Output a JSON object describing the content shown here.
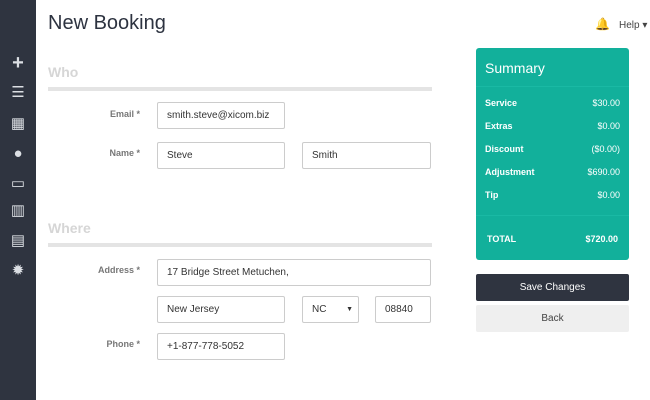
{
  "header": {
    "title": "New Booking",
    "help": "Help ▾"
  },
  "sidebar": {
    "icons": [
      "plus-icon",
      "list-icon",
      "calendar-icon",
      "user-icon",
      "credit-card-icon",
      "bar-chart-icon",
      "document-icon",
      "gear-icon"
    ]
  },
  "who": {
    "heading": "Who",
    "email_label": "Email *",
    "email": "smith.steve@xicom.biz",
    "name_label": "Name *",
    "first_name": "Steve",
    "last_name": "Smith"
  },
  "where": {
    "heading": "Where",
    "address_label": "Address *",
    "address": "17 Bridge Street Metuchen,",
    "city": "New Jersey",
    "state": "NC",
    "zip": "08840",
    "phone_label": "Phone *",
    "phone": "+1-877-778-5052"
  },
  "summary": {
    "title": "Summary",
    "rows": [
      {
        "label": "Service",
        "value": "$30.00"
      },
      {
        "label": "Extras",
        "value": "$0.00"
      },
      {
        "label": "Discount",
        "value": "($0.00)"
      },
      {
        "label": "Adjustment",
        "value": "$690.00"
      },
      {
        "label": "Tip",
        "value": "$0.00"
      }
    ],
    "total_label": "TOTAL",
    "total": "$720.00"
  },
  "actions": {
    "save": "Save Changes",
    "back": "Back"
  },
  "colors": {
    "accent": "#12b09b",
    "sidebar": "#2f3440"
  }
}
